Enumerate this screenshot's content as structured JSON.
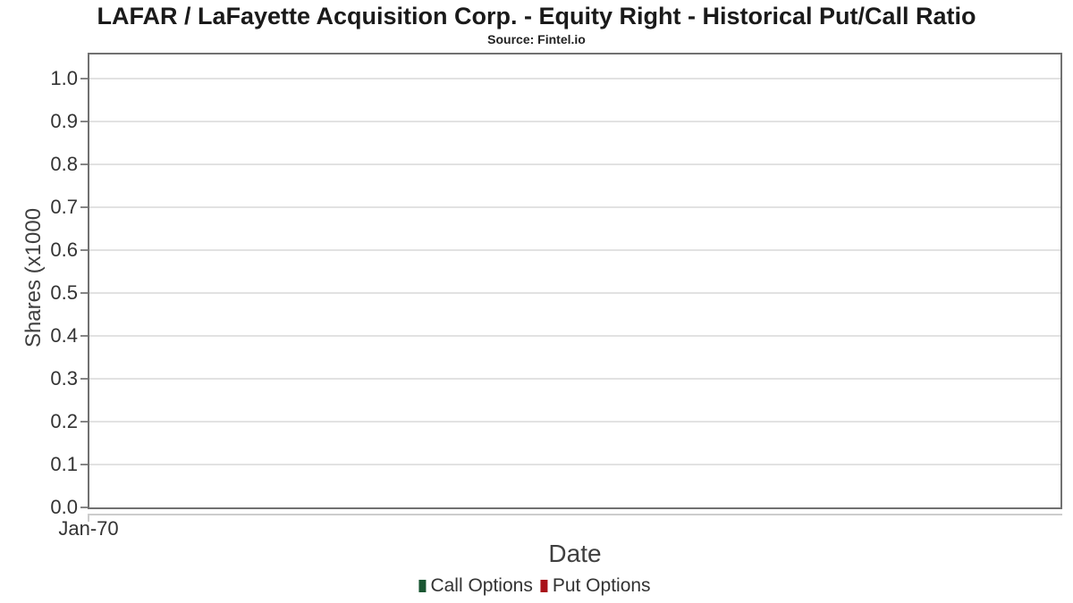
{
  "chart_data": {
    "type": "bar",
    "title": "LAFAR / LaFayette Acquisition Corp. - Equity Right - Historical Put/Call Ratio",
    "subtitle": "Source: Fintel.io",
    "xlabel": "Date",
    "ylabel": "Shares (x1000",
    "x_tick_labels": [
      "Jan-70"
    ],
    "y_ticks": [
      0.0,
      0.1,
      0.2,
      0.3,
      0.4,
      0.5,
      0.6,
      0.7,
      0.8,
      0.9,
      1.0
    ],
    "ylim": [
      0,
      1.056
    ],
    "grid": true,
    "legend_position": "bottom",
    "series": [
      {
        "name": "Call Options",
        "color": "#1a5632",
        "values": []
      },
      {
        "name": "Put Options",
        "color": "#a8121a",
        "values": []
      }
    ]
  }
}
